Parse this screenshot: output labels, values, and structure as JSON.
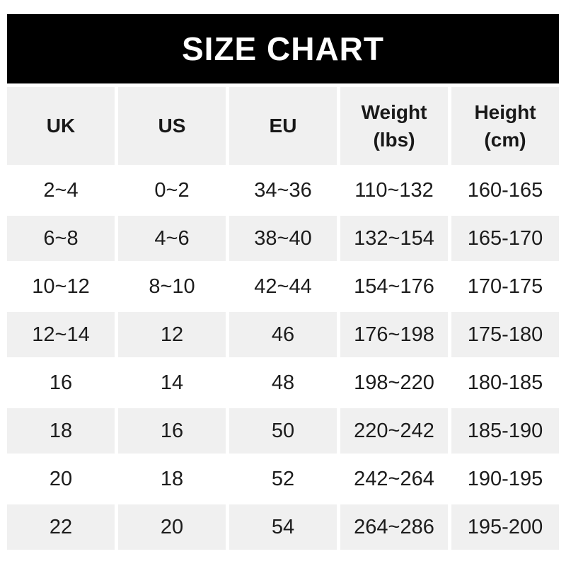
{
  "title_bar": {
    "title": "SIZE CHART"
  },
  "table": {
    "columns": [
      "UK",
      "US",
      "EU",
      "Weight\n(lbs)",
      "Height\n(cm)"
    ],
    "rows": [
      [
        "2~4",
        "0~2",
        "34~36",
        "110~132",
        "160-165"
      ],
      [
        "6~8",
        "4~6",
        "38~40",
        "132~154",
        "165-170"
      ],
      [
        "10~12",
        "8~10",
        "42~44",
        "154~176",
        "170-175"
      ],
      [
        "12~14",
        "12",
        "46",
        "176~198",
        "175-180"
      ],
      [
        "16",
        "14",
        "48",
        "198~220",
        "180-185"
      ],
      [
        "18",
        "16",
        "50",
        "220~242",
        "185-190"
      ],
      [
        "20",
        "18",
        "52",
        "242~264",
        "190-195"
      ],
      [
        "22",
        "20",
        "54",
        "264~286",
        "195-200"
      ]
    ]
  },
  "chart_data": {
    "type": "table",
    "title": "SIZE CHART",
    "columns": [
      "UK",
      "US",
      "EU",
      "Weight (lbs)",
      "Height (cm)"
    ],
    "rows": [
      [
        "2~4",
        "0~2",
        "34~36",
        "110~132",
        "160-165"
      ],
      [
        "6~8",
        "4~6",
        "38~40",
        "132~154",
        "165-170"
      ],
      [
        "10~12",
        "8~10",
        "42~44",
        "154~176",
        "170-175"
      ],
      [
        "12~14",
        "12",
        "46",
        "176~198",
        "175-180"
      ],
      [
        "16",
        "14",
        "48",
        "198~220",
        "180-185"
      ],
      [
        "18",
        "16",
        "50",
        "220~242",
        "185-190"
      ],
      [
        "20",
        "18",
        "52",
        "242~264",
        "190-195"
      ],
      [
        "22",
        "20",
        "54",
        "264~286",
        "195-200"
      ]
    ]
  },
  "colors": {
    "title_bar_bg": "#000000",
    "title_text": "#ffffff",
    "header_row_bg": "#f0f0f0",
    "row_alt_bg": "#f0f0f0",
    "row_bg": "#ffffff",
    "cell_text": "#1c1c1c"
  }
}
